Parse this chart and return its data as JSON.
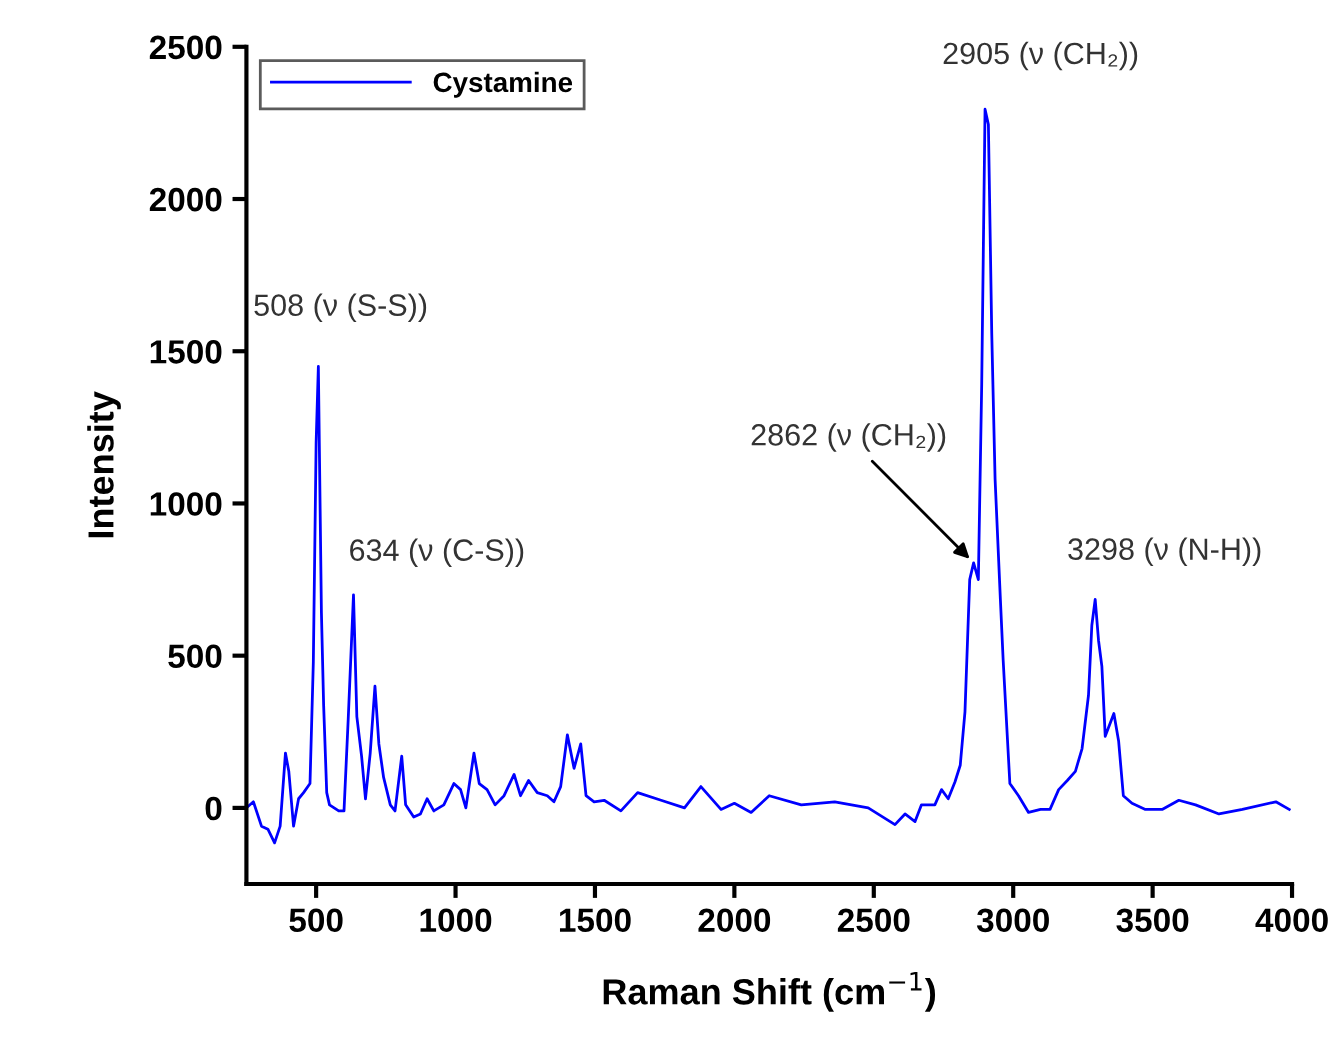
{
  "chart_data": {
    "type": "line",
    "xlabel": "Raman Shift (cm$^{−1}$)",
    "ylabel": "Intensity",
    "xlim": [
      250,
      4000
    ],
    "ylim": [
      -250,
      2500
    ],
    "xticks": [
      500,
      1000,
      1500,
      2000,
      2500,
      3000,
      3500,
      4000
    ],
    "yticks": [
      0,
      500,
      1000,
      1500,
      2000,
      2500
    ],
    "grid": false,
    "legend": "top left",
    "marker": "none",
    "line_style": "solid",
    "series": [
      {
        "name": "Cystamine",
        "color": "#0000ff",
        "x": [
          250,
          275,
          304,
          327,
          351,
          371,
          390,
          402,
          419,
          437,
          455,
          478,
          490,
          500,
          508,
          519,
          527,
          538,
          548,
          581,
          600,
          615,
          634,
          646,
          663,
          677,
          694,
          711,
          725,
          742,
          766,
          783,
          807,
          821,
          850,
          874,
          898,
          922,
          958,
          994,
          1018,
          1037,
          1066,
          1085,
          1113,
          1142,
          1174,
          1210,
          1233,
          1262,
          1293,
          1329,
          1353,
          1377,
          1401,
          1425,
          1449,
          1468,
          1497,
          1533,
          1593,
          1653,
          1737,
          1821,
          1880,
          1952,
          2000,
          2060,
          2125,
          2240,
          2360,
          2480,
          2576,
          2612,
          2648,
          2671,
          2719,
          2743,
          2767,
          2791,
          2810,
          2827,
          2844,
          2858,
          2875,
          2887,
          2899,
          2911,
          2923,
          2935,
          2954,
          2964,
          2988,
          3019,
          3055,
          3098,
          3132,
          3163,
          3194,
          3223,
          3247,
          3270,
          3282,
          3294,
          3306,
          3318,
          3330,
          3361,
          3378,
          3395,
          3426,
          3474,
          3534,
          3594,
          3654,
          3738,
          3822,
          3942,
          3990
        ],
        "values": [
          0,
          20,
          -60,
          -70,
          -115,
          -60,
          180,
          120,
          -60,
          30,
          50,
          80,
          480,
          1200,
          1450,
          640,
          335,
          50,
          10,
          -10,
          -10,
          290,
          700,
          300,
          170,
          30,
          180,
          400,
          210,
          100,
          10,
          -10,
          170,
          10,
          -30,
          -20,
          30,
          -10,
          10,
          80,
          60,
          0,
          180,
          80,
          60,
          10,
          40,
          110,
          40,
          90,
          50,
          40,
          20,
          70,
          240,
          130,
          210,
          40,
          20,
          25,
          -10,
          50,
          25,
          0,
          70,
          -5,
          15,
          -15,
          40,
          10,
          20,
          0,
          -55,
          -20,
          -45,
          10,
          10,
          60,
          30,
          85,
          140,
          315,
          750,
          805,
          750,
          1390,
          2295,
          2245,
          1560,
          1080,
          685,
          485,
          80,
          40,
          -15,
          -5,
          -5,
          60,
          90,
          120,
          195,
          370,
          600,
          685,
          550,
          465,
          235,
          310,
          220,
          40,
          15,
          -5,
          -5,
          25,
          10,
          -20,
          -5,
          20,
          -5
        ]
      }
    ],
    "annotations": [
      {
        "text": "508 (ν (S-S))",
        "x": 508,
        "y": 1450
      },
      {
        "text": "634 (ν (C-S))",
        "x": 634,
        "y": 700
      },
      {
        "text": "2862 (ν (CH₂))",
        "x": 2858,
        "y": 805
      },
      {
        "text": "2905 (ν (CH₂))",
        "x": 2899,
        "y": 2295
      },
      {
        "text": "3298 (ν (N-H))",
        "x": 3294,
        "y": 685
      }
    ]
  }
}
